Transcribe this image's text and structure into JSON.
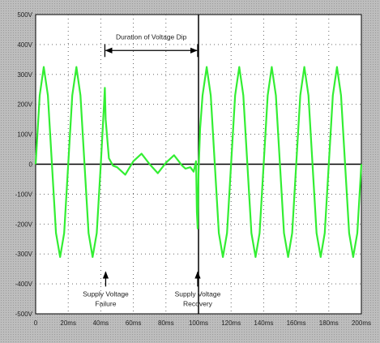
{
  "chart_data": {
    "type": "line",
    "title": "",
    "xlabel": "",
    "ylabel": "",
    "xlim": [
      0,
      200
    ],
    "ylim": [
      -500,
      500
    ],
    "x_ticks": [
      0,
      20,
      40,
      60,
      80,
      100,
      120,
      140,
      160,
      180,
      200
    ],
    "x_tick_labels": [
      "0",
      "20ms",
      "40ms",
      "60ms",
      "80ms",
      "100ms",
      "120ms",
      "140ms",
      "160ms",
      "180ms",
      "200ms"
    ],
    "y_ticks": [
      500,
      400,
      300,
      200,
      100,
      0,
      -100,
      -200,
      -300,
      -400,
      -500
    ],
    "y_tick_labels": [
      "500V",
      "400V",
      "300V",
      "200V",
      "100V",
      "0",
      "-100V",
      "-200V",
      "-300V",
      "-400V",
      "-500V"
    ],
    "grid": true,
    "vertical_marker_x": 100,
    "series": [
      {
        "color": "#33ee33",
        "x": [
          0,
          2.5,
          5,
          7.5,
          10,
          12.5,
          15,
          17.5,
          20,
          22.5,
          25,
          27.5,
          30,
          32.5,
          35,
          37.5,
          40,
          42,
          42.5,
          43,
          45,
          47.5,
          50,
          55,
          60,
          65,
          70,
          75,
          80,
          85,
          90,
          92,
          95,
          97,
          98.5,
          99,
          99.5,
          100,
          101,
          102.5,
          105,
          107.5,
          110,
          112.5,
          115,
          117.5,
          120,
          122.5,
          125,
          127.5,
          130,
          132.5,
          135,
          137.5,
          140,
          142.5,
          145,
          147.5,
          150,
          152.5,
          155,
          157.5,
          160,
          162.5,
          165,
          167.5,
          170,
          172.5,
          175,
          177.5,
          180,
          182.5,
          185,
          187.5,
          190,
          192.5,
          195,
          197.5,
          200
        ],
        "y": [
          0,
          230,
          325,
          230,
          0,
          -230,
          -310,
          -230,
          0,
          230,
          325,
          230,
          0,
          -230,
          -310,
          -230,
          0,
          200,
          255,
          150,
          20,
          -5,
          -10,
          -35,
          10,
          35,
          0,
          -30,
          5,
          30,
          -5,
          -15,
          -10,
          -25,
          10,
          -160,
          -215,
          -30,
          120,
          230,
          325,
          230,
          0,
          -230,
          -310,
          -230,
          0,
          230,
          325,
          230,
          0,
          -230,
          -310,
          -230,
          0,
          230,
          325,
          230,
          0,
          -230,
          -310,
          -230,
          0,
          230,
          325,
          230,
          0,
          -230,
          -310,
          -230,
          0,
          230,
          325,
          230,
          0,
          -230,
          -310,
          -230,
          0
        ]
      }
    ],
    "annotations": {
      "duration": {
        "text": "Duration of Voltage Dip",
        "x_start": 42.5,
        "x_end": 99.5,
        "y": 380
      },
      "failure": {
        "lines": [
          "Supply Voltage",
          "Failure"
        ],
        "x": 43,
        "arrow_tip_y": -360
      },
      "recovery": {
        "lines": [
          "Supply Voltage",
          "Recovery"
        ],
        "x": 99.5,
        "arrow_tip_y": -360
      }
    }
  }
}
